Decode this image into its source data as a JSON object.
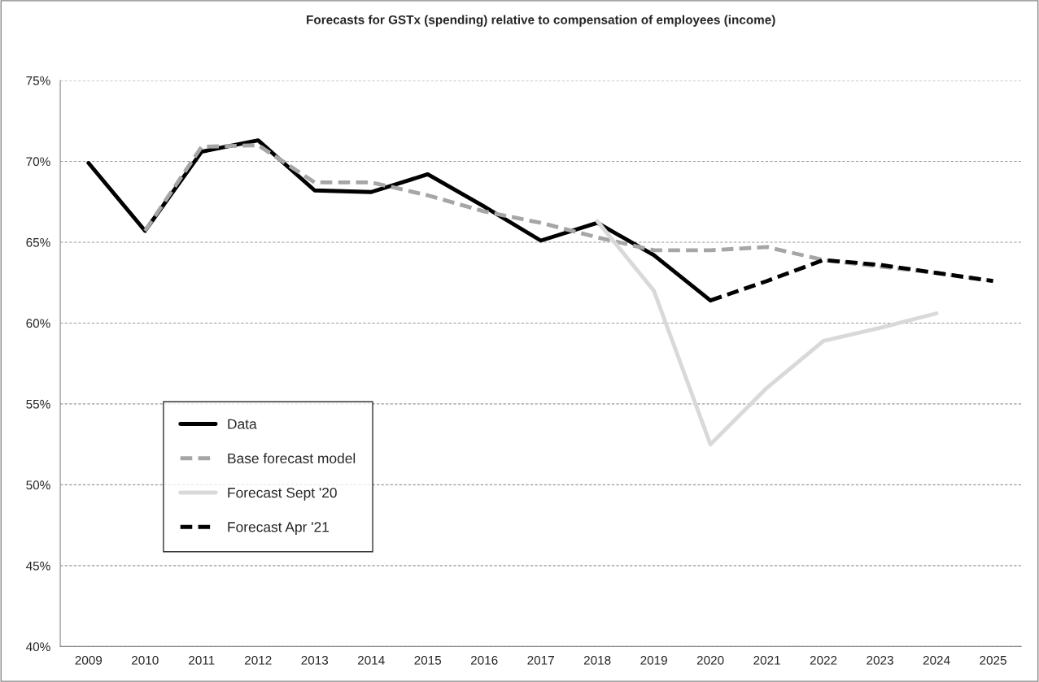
{
  "chart_data": {
    "type": "line",
    "title": "Forecasts for GSTx (spending) relative to compensation of employees (income)",
    "categories": [
      "2009",
      "2010",
      "2011",
      "2012",
      "2013",
      "2014",
      "2015",
      "2016",
      "2017",
      "2018",
      "2019",
      "2020",
      "2021",
      "2022",
      "2023",
      "2024",
      "2025"
    ],
    "series": [
      {
        "name": "Data",
        "color": "#000000",
        "line_style": "solid",
        "values": [
          69.9,
          65.7,
          70.6,
          71.3,
          68.2,
          68.1,
          69.2,
          67.2,
          65.1,
          66.2,
          64.2,
          61.4,
          null,
          null,
          null,
          null,
          null
        ]
      },
      {
        "name": "Base forecast model",
        "color": "#a6a6a6",
        "line_style": "dashed",
        "values": [
          null,
          65.7,
          70.9,
          71.0,
          68.7,
          68.7,
          67.9,
          66.9,
          66.2,
          65.3,
          64.5,
          64.5,
          64.7,
          63.9,
          63.5,
          63.1,
          62.6
        ]
      },
      {
        "name": "Forecast Sept '20",
        "color": "#d9d9d9",
        "line_style": "solid",
        "values": [
          null,
          null,
          null,
          null,
          null,
          null,
          null,
          null,
          null,
          66.3,
          62.0,
          52.5,
          56.0,
          58.9,
          59.7,
          60.6,
          null
        ]
      },
      {
        "name": "Forecast Apr '21",
        "color": "#000000",
        "line_style": "dashed",
        "values": [
          null,
          null,
          null,
          null,
          null,
          null,
          null,
          null,
          null,
          null,
          null,
          61.4,
          62.6,
          63.9,
          63.6,
          63.1,
          62.6
        ]
      }
    ],
    "ylim": [
      40,
      75
    ],
    "yticks": [
      {
        "value": 40,
        "label": "40%"
      },
      {
        "value": 45,
        "label": "45%"
      },
      {
        "value": 50,
        "label": "50%"
      },
      {
        "value": 55,
        "label": "55%"
      },
      {
        "value": 60,
        "label": "60%"
      },
      {
        "value": 65,
        "label": "65%"
      },
      {
        "value": 70,
        "label": "70%"
      },
      {
        "value": 75,
        "label": "75%"
      }
    ],
    "grid": "y",
    "legend": "center left",
    "marker": "none"
  }
}
